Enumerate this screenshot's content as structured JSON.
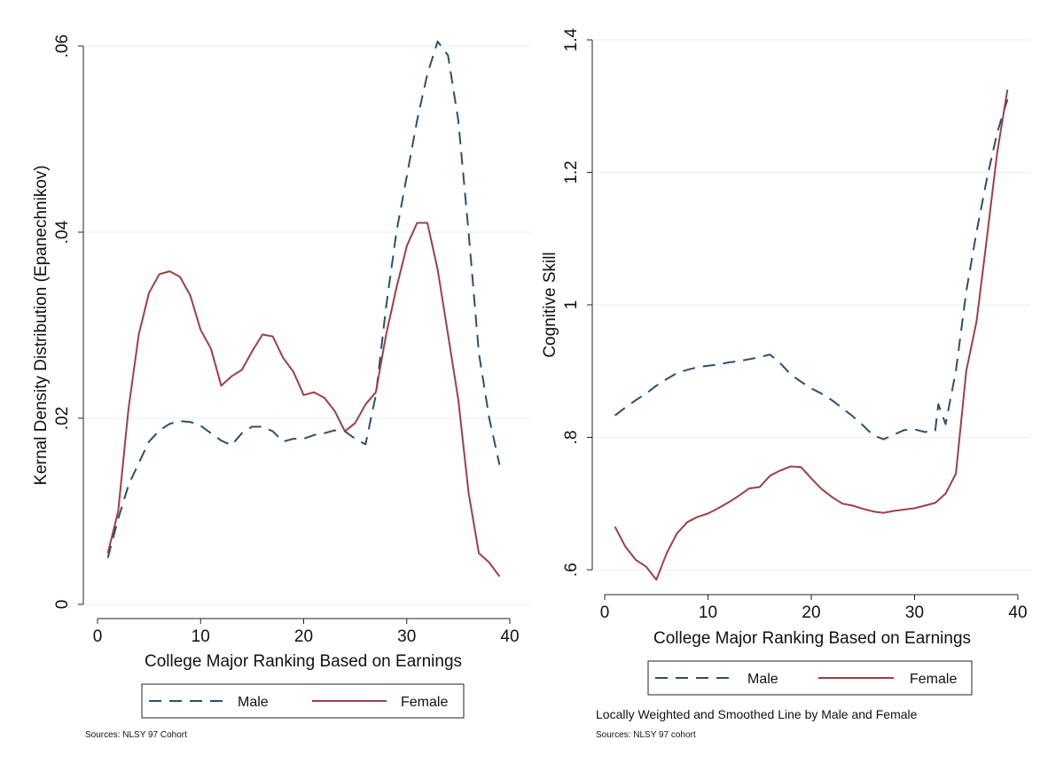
{
  "chart_data": [
    {
      "type": "line",
      "title": "",
      "xlabel": "College Major Ranking Based on Earnings",
      "ylabel": "Kernal Density Distribution (Epanechnikov)",
      "xlim": [
        0,
        40
      ],
      "ylim": [
        0,
        0.06
      ],
      "xticks": [
        0,
        10,
        20,
        30,
        40
      ],
      "xtick_labels": [
        "0",
        "10",
        "20",
        "30",
        "40"
      ],
      "yticks": [
        0,
        0.02,
        0.04,
        0.06
      ],
      "ytick_labels": [
        "0",
        ".02",
        ".04",
        ".06"
      ],
      "grid": true,
      "legend_position": "bottom",
      "legend": [
        "Male",
        "Female"
      ],
      "note": "",
      "source": "Sources: NLSY 97 Cohort",
      "series": [
        {
          "name": "Male",
          "color": "#2e4e6e",
          "style": "dashed",
          "x": [
            1,
            2,
            3,
            4,
            5,
            6,
            7,
            8,
            9,
            10,
            11,
            12,
            13,
            14,
            15,
            16,
            17,
            18,
            19,
            20,
            21,
            22,
            23,
            24,
            25,
            26,
            27,
            28,
            29,
            30,
            31,
            32,
            33,
            34,
            35,
            36,
            37,
            38,
            39
          ],
          "y": [
            0.005,
            0.0092,
            0.0128,
            0.0152,
            0.0175,
            0.0187,
            0.0194,
            0.0197,
            0.0196,
            0.0192,
            0.0184,
            0.0176,
            0.0171,
            0.0184,
            0.0191,
            0.0191,
            0.0186,
            0.0175,
            0.0178,
            0.0178,
            0.0182,
            0.0184,
            0.0187,
            0.0186,
            0.0178,
            0.0172,
            0.0225,
            0.032,
            0.04,
            0.046,
            0.052,
            0.057,
            0.0605,
            0.059,
            0.052,
            0.04,
            0.027,
            0.02,
            0.015
          ]
        },
        {
          "name": "Female",
          "color": "#9b4047",
          "style": "solid",
          "x": [
            1,
            2,
            3,
            4,
            5,
            6,
            7,
            8,
            9,
            10,
            11,
            12,
            13,
            14,
            15,
            16,
            17,
            18,
            19,
            20,
            21,
            22,
            23,
            24,
            25,
            26,
            27,
            28,
            29,
            30,
            31,
            32,
            33,
            34,
            35,
            36,
            37,
            38,
            39
          ],
          "y": [
            0.0055,
            0.01,
            0.021,
            0.029,
            0.0335,
            0.0355,
            0.0358,
            0.0352,
            0.0332,
            0.0295,
            0.0275,
            0.0235,
            0.0245,
            0.0252,
            0.0272,
            0.029,
            0.0288,
            0.0265,
            0.025,
            0.0225,
            0.0228,
            0.0222,
            0.0208,
            0.0186,
            0.0195,
            0.0215,
            0.0228,
            0.029,
            0.034,
            0.0385,
            0.041,
            0.041,
            0.036,
            0.029,
            0.022,
            0.012,
            0.0055,
            0.0045,
            0.003
          ]
        }
      ]
    },
    {
      "type": "line",
      "title": "",
      "xlabel": "College Major Ranking Based on Earnings",
      "ylabel": "Cognitive Skill",
      "xlim": [
        0,
        40
      ],
      "ylim": [
        0.6,
        1.4
      ],
      "xticks": [
        0,
        10,
        20,
        30,
        40
      ],
      "xtick_labels": [
        "0",
        "10",
        "20",
        "30",
        "40"
      ],
      "yticks": [
        0.6,
        0.8,
        1.0,
        1.2,
        1.4
      ],
      "ytick_labels": [
        ".6",
        ".8",
        "1",
        "1.2",
        "1.4"
      ],
      "grid": true,
      "legend_position": "bottom",
      "legend": [
        "Male",
        "Female"
      ],
      "note": "Locally Weighted and Smoothed Line by Male and Female",
      "source": "Sources: NLSY 97 cohort",
      "series": [
        {
          "name": "Male",
          "color": "#2e4e6e",
          "style": "dashed",
          "x": [
            1,
            2,
            3,
            4,
            5,
            6,
            7,
            8,
            9,
            10,
            11,
            12,
            13,
            14,
            15,
            16,
            17,
            18,
            19,
            20,
            21,
            22,
            23,
            24,
            25,
            26,
            27,
            28,
            29,
            30,
            31,
            32,
            32.3,
            33,
            34,
            35,
            36,
            37,
            38,
            39
          ],
          "y": [
            0.833,
            0.845,
            0.856,
            0.866,
            0.878,
            0.888,
            0.897,
            0.902,
            0.906,
            0.908,
            0.91,
            0.913,
            0.915,
            0.918,
            0.921,
            0.925,
            0.912,
            0.895,
            0.884,
            0.874,
            0.866,
            0.856,
            0.844,
            0.832,
            0.818,
            0.803,
            0.797,
            0.804,
            0.811,
            0.812,
            0.808,
            0.81,
            0.85,
            0.82,
            0.9,
            1.02,
            1.11,
            1.19,
            1.26,
            1.31
          ]
        },
        {
          "name": "Female",
          "color": "#9b4047",
          "style": "solid",
          "x": [
            1,
            2,
            3,
            4,
            5,
            6,
            7,
            8,
            9,
            10,
            11,
            12,
            13,
            14,
            15,
            16,
            17,
            18,
            19,
            20,
            21,
            22,
            23,
            24,
            25,
            26,
            27,
            28,
            29,
            30,
            31,
            32,
            33,
            34,
            35,
            36,
            37,
            38,
            39
          ],
          "y": [
            0.665,
            0.635,
            0.615,
            0.605,
            0.585,
            0.625,
            0.655,
            0.672,
            0.68,
            0.685,
            0.693,
            0.702,
            0.712,
            0.723,
            0.725,
            0.742,
            0.75,
            0.756,
            0.755,
            0.738,
            0.722,
            0.71,
            0.7,
            0.697,
            0.692,
            0.688,
            0.686,
            0.689,
            0.691,
            0.693,
            0.697,
            0.701,
            0.715,
            0.745,
            0.9,
            0.975,
            1.1,
            1.23,
            1.325
          ]
        }
      ]
    }
  ]
}
